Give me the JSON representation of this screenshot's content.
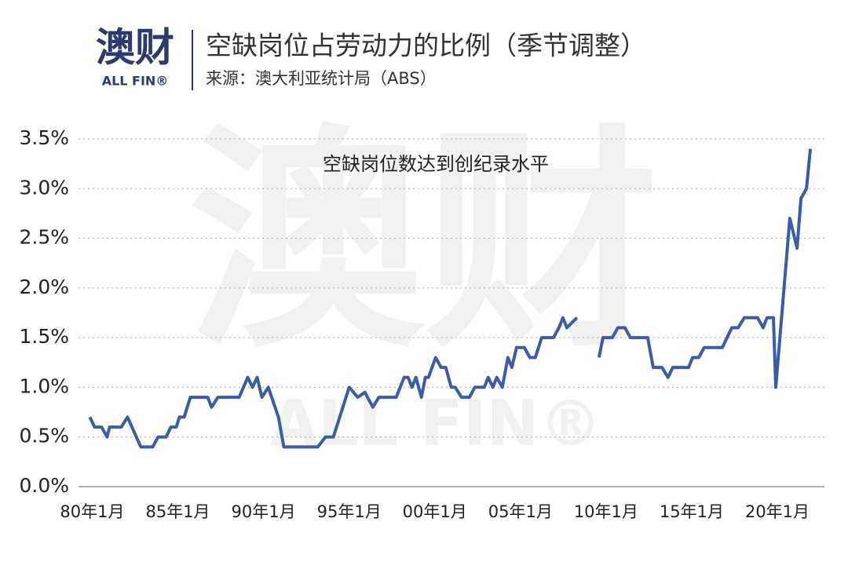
{
  "logo": {
    "name": "澳财",
    "sub": "ALL FIN®"
  },
  "watermark": {
    "name": "澳财",
    "sub": "ALL FIN®"
  },
  "chart_data": {
    "type": "line",
    "title": "空缺岗位占劳动力的比例（季节调整）",
    "subtitle": "来源：澳大利亚统计局（ABS）",
    "annotation": "空缺岗位数达到创纪录水平",
    "color": "#3d5ba6",
    "grid": true,
    "x": [
      1979.86,
      1980.14,
      1980.55,
      1980.87,
      1981.01,
      1981.7,
      1982.06,
      1982.84,
      1983.53,
      1983.85,
      1984.31,
      1984.59,
      1984.91,
      1985.09,
      1985.37,
      1985.73,
      1986.74,
      1986.97,
      1987.34,
      1988.58,
      1989.08,
      1989.36,
      1989.63,
      1989.91,
      1990.28,
      1990.87,
      1991.19,
      1993.17,
      1993.62,
      1994.08,
      1995.0,
      1995.5,
      1995.92,
      1996.38,
      1996.74,
      1997.75,
      1998.21,
      1998.44,
      1998.67,
      1998.9,
      1999.22,
      1999.45,
      1999.63,
      2000.05,
      2000.37,
      2000.64,
      2000.96,
      2001.19,
      2001.56,
      2002.02,
      2002.34,
      2002.89,
      2003.12,
      2003.39,
      2003.62,
      2003.94,
      2004.27,
      2004.5,
      2004.77,
      2005.23,
      2005.55,
      2005.87,
      2006.24,
      2006.93,
      2007.25,
      2007.48,
      2007.71,
      2008.3,
      2009.0,
      2009.59,
      2009.82,
      2010.37,
      2010.69,
      2011.1,
      2011.42,
      2012.43,
      2012.75,
      2013.26,
      2013.62,
      2013.9,
      2014.82,
      2015.05,
      2015.41,
      2015.73,
      2016.79,
      2017.34,
      2017.71,
      2018.07,
      2018.85,
      2019.17,
      2019.4,
      2019.77,
      2019.91,
      2020.73,
      2021.15,
      2021.38,
      2021.7,
      2021.93
    ],
    "values": [
      0.7,
      0.6,
      0.6,
      0.5,
      0.6,
      0.6,
      0.7,
      0.4,
      0.4,
      0.5,
      0.5,
      0.6,
      0.6,
      0.7,
      0.7,
      0.9,
      0.9,
      0.8,
      0.9,
      0.9,
      1.1,
      1.0,
      1.1,
      0.9,
      1.0,
      0.7,
      0.4,
      0.4,
      0.5,
      0.5,
      1.0,
      0.9,
      0.95,
      0.8,
      0.9,
      0.9,
      1.1,
      1.1,
      1.0,
      1.1,
      0.9,
      1.1,
      1.1,
      1.3,
      1.2,
      1.2,
      1.0,
      1.0,
      0.9,
      0.9,
      1.0,
      1.0,
      1.1,
      1.0,
      1.1,
      1.0,
      1.3,
      1.2,
      1.4,
      1.4,
      1.3,
      1.3,
      1.5,
      1.5,
      1.6,
      1.7,
      1.6,
      1.7,
      null,
      1.3,
      1.5,
      1.5,
      1.6,
      1.6,
      1.5,
      1.5,
      1.2,
      1.2,
      1.1,
      1.2,
      1.2,
      1.3,
      1.3,
      1.4,
      1.4,
      1.6,
      1.6,
      1.7,
      1.7,
      1.6,
      1.7,
      1.7,
      1.0,
      2.7,
      2.4,
      2.9,
      3.0,
      3.4
    ],
    "xlim": [
      1979.2,
      2022.75
    ],
    "xticks": [
      {
        "value": 1980,
        "label": "80年1月"
      },
      {
        "value": 1985,
        "label": "85年1月"
      },
      {
        "value": 1990,
        "label": "90年1月"
      },
      {
        "value": 1995,
        "label": "95年1月"
      },
      {
        "value": 2000,
        "label": "00年1月"
      },
      {
        "value": 2005,
        "label": "05年1月"
      },
      {
        "value": 2010,
        "label": "10年1月"
      },
      {
        "value": 2015,
        "label": "15年1月"
      },
      {
        "value": 2020,
        "label": "20年1月"
      }
    ],
    "ylim": [
      0,
      3.5
    ],
    "yticks": [
      {
        "value": 0,
        "label": "0.0%"
      },
      {
        "value": 0.5,
        "label": "0.5%"
      },
      {
        "value": 1,
        "label": "1.0%"
      },
      {
        "value": 1.5,
        "label": "1.5%"
      },
      {
        "value": 2,
        "label": "2.0%"
      },
      {
        "value": 2.5,
        "label": "2.5%"
      },
      {
        "value": 3,
        "label": "3.0%"
      },
      {
        "value": 3.5,
        "label": "3.5%"
      }
    ]
  }
}
